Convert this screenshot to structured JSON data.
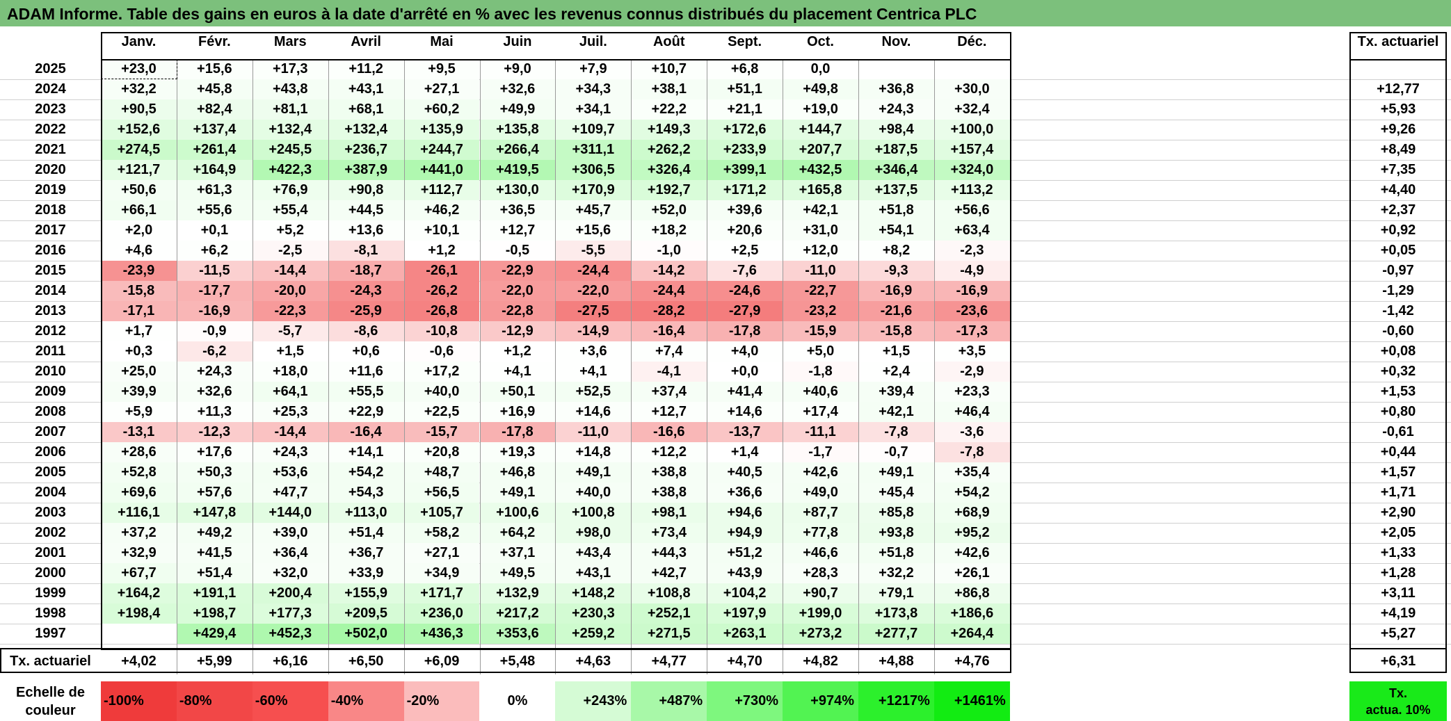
{
  "title": "ADAM Informe. Table des gains en euros à la date d'arrêté en % avec les revenus connus distribués du placement Centrica PLC",
  "months": [
    "Janv.",
    "Févr.",
    "Mars",
    "Avril",
    "Mai",
    "Juin",
    "Juil.",
    "Août",
    "Sept.",
    "Oct.",
    "Nov.",
    "Déc."
  ],
  "actuarial_header": "Tx. actuariel",
  "rows": [
    {
      "year": "2025",
      "values": [
        "+23,0",
        "+15,6",
        "+17,3",
        "+11,2",
        "+9,5",
        "+9,0",
        "+7,9",
        "+10,7",
        "+6,8",
        "0,0",
        "",
        ""
      ],
      "rate": ""
    },
    {
      "year": "2024",
      "values": [
        "+32,2",
        "+45,8",
        "+43,8",
        "+43,1",
        "+27,1",
        "+32,6",
        "+34,3",
        "+38,1",
        "+51,1",
        "+49,8",
        "+36,8",
        "+30,0"
      ],
      "rate": "+12,77"
    },
    {
      "year": "2023",
      "values": [
        "+90,5",
        "+82,4",
        "+81,1",
        "+68,1",
        "+60,2",
        "+49,9",
        "+34,1",
        "+22,2",
        "+21,1",
        "+19,0",
        "+24,3",
        "+32,4"
      ],
      "rate": "+5,93"
    },
    {
      "year": "2022",
      "values": [
        "+152,6",
        "+137,4",
        "+132,4",
        "+132,4",
        "+135,9",
        "+135,8",
        "+109,7",
        "+149,3",
        "+172,6",
        "+144,7",
        "+98,4",
        "+100,0"
      ],
      "rate": "+9,26"
    },
    {
      "year": "2021",
      "values": [
        "+274,5",
        "+261,4",
        "+245,5",
        "+236,7",
        "+244,7",
        "+266,4",
        "+311,1",
        "+262,2",
        "+233,9",
        "+207,7",
        "+187,5",
        "+157,4"
      ],
      "rate": "+8,49"
    },
    {
      "year": "2020",
      "values": [
        "+121,7",
        "+164,9",
        "+422,3",
        "+387,9",
        "+441,0",
        "+419,5",
        "+306,5",
        "+326,4",
        "+399,1",
        "+432,5",
        "+346,4",
        "+324,0"
      ],
      "rate": "+7,35"
    },
    {
      "year": "2019",
      "values": [
        "+50,6",
        "+61,3",
        "+76,9",
        "+90,8",
        "+112,7",
        "+130,0",
        "+170,9",
        "+192,7",
        "+171,2",
        "+165,8",
        "+137,5",
        "+113,2"
      ],
      "rate": "+4,40"
    },
    {
      "year": "2018",
      "values": [
        "+66,1",
        "+55,6",
        "+55,4",
        "+44,5",
        "+46,2",
        "+36,5",
        "+45,7",
        "+52,0",
        "+39,6",
        "+42,1",
        "+51,8",
        "+56,6"
      ],
      "rate": "+2,37"
    },
    {
      "year": "2017",
      "values": [
        "+2,0",
        "+0,1",
        "+5,2",
        "+13,6",
        "+10,1",
        "+12,7",
        "+15,6",
        "+18,2",
        "+20,6",
        "+31,0",
        "+54,1",
        "+63,4"
      ],
      "rate": "+0,92"
    },
    {
      "year": "2016",
      "values": [
        "+4,6",
        "+6,2",
        "-2,5",
        "-8,1",
        "+1,2",
        "-0,5",
        "-5,5",
        "-1,0",
        "+2,5",
        "+12,0",
        "+8,2",
        "-2,3"
      ],
      "rate": "+0,05"
    },
    {
      "year": "2015",
      "values": [
        "-23,9",
        "-11,5",
        "-14,4",
        "-18,7",
        "-26,1",
        "-22,9",
        "-24,4",
        "-14,2",
        "-7,6",
        "-11,0",
        "-9,3",
        "-4,9"
      ],
      "rate": "-0,97"
    },
    {
      "year": "2014",
      "values": [
        "-15,8",
        "-17,7",
        "-20,0",
        "-24,3",
        "-26,2",
        "-22,0",
        "-22,0",
        "-24,4",
        "-24,6",
        "-22,7",
        "-16,9",
        "-16,9"
      ],
      "rate": "-1,29"
    },
    {
      "year": "2013",
      "values": [
        "-17,1",
        "-16,9",
        "-22,3",
        "-25,9",
        "-26,8",
        "-22,8",
        "-27,5",
        "-28,2",
        "-27,9",
        "-23,2",
        "-21,6",
        "-23,6"
      ],
      "rate": "-1,42"
    },
    {
      "year": "2012",
      "values": [
        "+1,7",
        "-0,9",
        "-5,7",
        "-8,6",
        "-10,8",
        "-12,9",
        "-14,9",
        "-16,4",
        "-17,8",
        "-15,9",
        "-15,8",
        "-17,3"
      ],
      "rate": "-0,60"
    },
    {
      "year": "2011",
      "values": [
        "+0,3",
        "-6,2",
        "+1,5",
        "+0,6",
        "-0,6",
        "+1,2",
        "+3,6",
        "+7,4",
        "+4,0",
        "+5,0",
        "+1,5",
        "+3,5"
      ],
      "rate": "+0,08"
    },
    {
      "year": "2010",
      "values": [
        "+25,0",
        "+24,3",
        "+18,0",
        "+11,6",
        "+17,2",
        "+4,1",
        "+4,1",
        "-4,1",
        "+0,0",
        "-1,8",
        "+2,4",
        "-2,9"
      ],
      "rate": "+0,32"
    },
    {
      "year": "2009",
      "values": [
        "+39,9",
        "+32,6",
        "+64,1",
        "+55,5",
        "+40,0",
        "+50,1",
        "+52,5",
        "+37,4",
        "+41,4",
        "+40,6",
        "+39,4",
        "+23,3"
      ],
      "rate": "+1,53"
    },
    {
      "year": "2008",
      "values": [
        "+5,9",
        "+11,3",
        "+25,3",
        "+22,9",
        "+22,5",
        "+16,9",
        "+14,6",
        "+12,7",
        "+14,6",
        "+17,4",
        "+42,1",
        "+46,4"
      ],
      "rate": "+0,80"
    },
    {
      "year": "2007",
      "values": [
        "-13,1",
        "-12,3",
        "-14,4",
        "-16,4",
        "-15,7",
        "-17,8",
        "-11,0",
        "-16,6",
        "-13,7",
        "-11,1",
        "-7,8",
        "-3,6"
      ],
      "rate": "-0,61"
    },
    {
      "year": "2006",
      "values": [
        "+28,6",
        "+17,6",
        "+24,3",
        "+14,1",
        "+20,8",
        "+19,3",
        "+14,8",
        "+12,2",
        "+1,4",
        "-1,7",
        "-0,7",
        "-7,8"
      ],
      "rate": "+0,44"
    },
    {
      "year": "2005",
      "values": [
        "+52,8",
        "+50,3",
        "+53,6",
        "+54,2",
        "+48,7",
        "+46,8",
        "+49,1",
        "+38,8",
        "+40,5",
        "+42,6",
        "+49,1",
        "+35,4"
      ],
      "rate": "+1,57"
    },
    {
      "year": "2004",
      "values": [
        "+69,6",
        "+57,6",
        "+47,7",
        "+54,3",
        "+56,5",
        "+49,1",
        "+40,0",
        "+38,8",
        "+36,6",
        "+49,0",
        "+45,4",
        "+54,2"
      ],
      "rate": "+1,71"
    },
    {
      "year": "2003",
      "values": [
        "+116,1",
        "+147,8",
        "+144,0",
        "+113,0",
        "+105,7",
        "+100,6",
        "+100,8",
        "+98,1",
        "+94,6",
        "+87,7",
        "+85,8",
        "+68,9"
      ],
      "rate": "+2,90"
    },
    {
      "year": "2002",
      "values": [
        "+37,2",
        "+49,2",
        "+39,0",
        "+51,4",
        "+58,2",
        "+64,2",
        "+98,0",
        "+73,4",
        "+94,9",
        "+77,8",
        "+93,8",
        "+95,2"
      ],
      "rate": "+2,05"
    },
    {
      "year": "2001",
      "values": [
        "+32,9",
        "+41,5",
        "+36,4",
        "+36,7",
        "+27,1",
        "+37,1",
        "+43,4",
        "+44,3",
        "+51,2",
        "+46,6",
        "+51,8",
        "+42,6"
      ],
      "rate": "+1,33"
    },
    {
      "year": "2000",
      "values": [
        "+67,7",
        "+51,4",
        "+32,0",
        "+33,9",
        "+34,9",
        "+49,5",
        "+43,1",
        "+42,7",
        "+43,9",
        "+28,3",
        "+32,2",
        "+26,1"
      ],
      "rate": "+1,28"
    },
    {
      "year": "1999",
      "values": [
        "+164,2",
        "+191,1",
        "+200,4",
        "+155,9",
        "+171,7",
        "+132,9",
        "+148,2",
        "+108,8",
        "+104,2",
        "+90,7",
        "+79,1",
        "+86,8"
      ],
      "rate": "+3,11"
    },
    {
      "year": "1998",
      "values": [
        "+198,4",
        "+198,7",
        "+177,3",
        "+209,5",
        "+236,0",
        "+217,2",
        "+230,3",
        "+252,1",
        "+197,9",
        "+199,0",
        "+173,8",
        "+186,6"
      ],
      "rate": "+4,19"
    },
    {
      "year": "1997",
      "values": [
        "",
        "+429,4",
        "+452,3",
        "+502,0",
        "+436,3",
        "+353,6",
        "+259,2",
        "+271,5",
        "+263,1",
        "+273,2",
        "+277,7",
        "+264,4"
      ],
      "rate": "+5,27"
    }
  ],
  "totals": {
    "label": "Tx. actuariel",
    "values": [
      "+4,02",
      "+5,99",
      "+6,16",
      "+6,50",
      "+6,09",
      "+5,48",
      "+4,63",
      "+4,77",
      "+4,70",
      "+4,82",
      "+4,88",
      "+4,76"
    ],
    "rate": "+6,31"
  },
  "legend": {
    "label": "Echelle de\ncouleur",
    "items": [
      {
        "text": "-100%",
        "color": "#ef3b3b",
        "kind": "neg"
      },
      {
        "text": "-80%",
        "color": "#f24747",
        "kind": "neg"
      },
      {
        "text": "-60%",
        "color": "#f64f4f",
        "kind": "neg"
      },
      {
        "text": "-40%",
        "color": "#f98787",
        "kind": "neg"
      },
      {
        "text": "-20%",
        "color": "#fbbcbc",
        "kind": "neg"
      },
      {
        "text": "0%",
        "color": "#ffffff",
        "kind": "zero"
      },
      {
        "text": "+243%",
        "color": "#d5fbd5",
        "kind": "pos"
      },
      {
        "text": "+487%",
        "color": "#a8f8a8",
        "kind": "pos"
      },
      {
        "text": "+730%",
        "color": "#7ef77e",
        "kind": "pos"
      },
      {
        "text": "+974%",
        "color": "#52f352",
        "kind": "pos"
      },
      {
        "text": "+1217%",
        "color": "#2cf02c",
        "kind": "pos"
      },
      {
        "text": "+1461%",
        "color": "#12ec12",
        "kind": "pos"
      }
    ],
    "actuarial_label": "Tx.\nactua. 10%",
    "actuarial_color": "#19ea19"
  },
  "colors": {
    "title_bg": "#7cc07c",
    "negative_max": "#f47c7c",
    "positive_max": "#a6f7a6"
  }
}
